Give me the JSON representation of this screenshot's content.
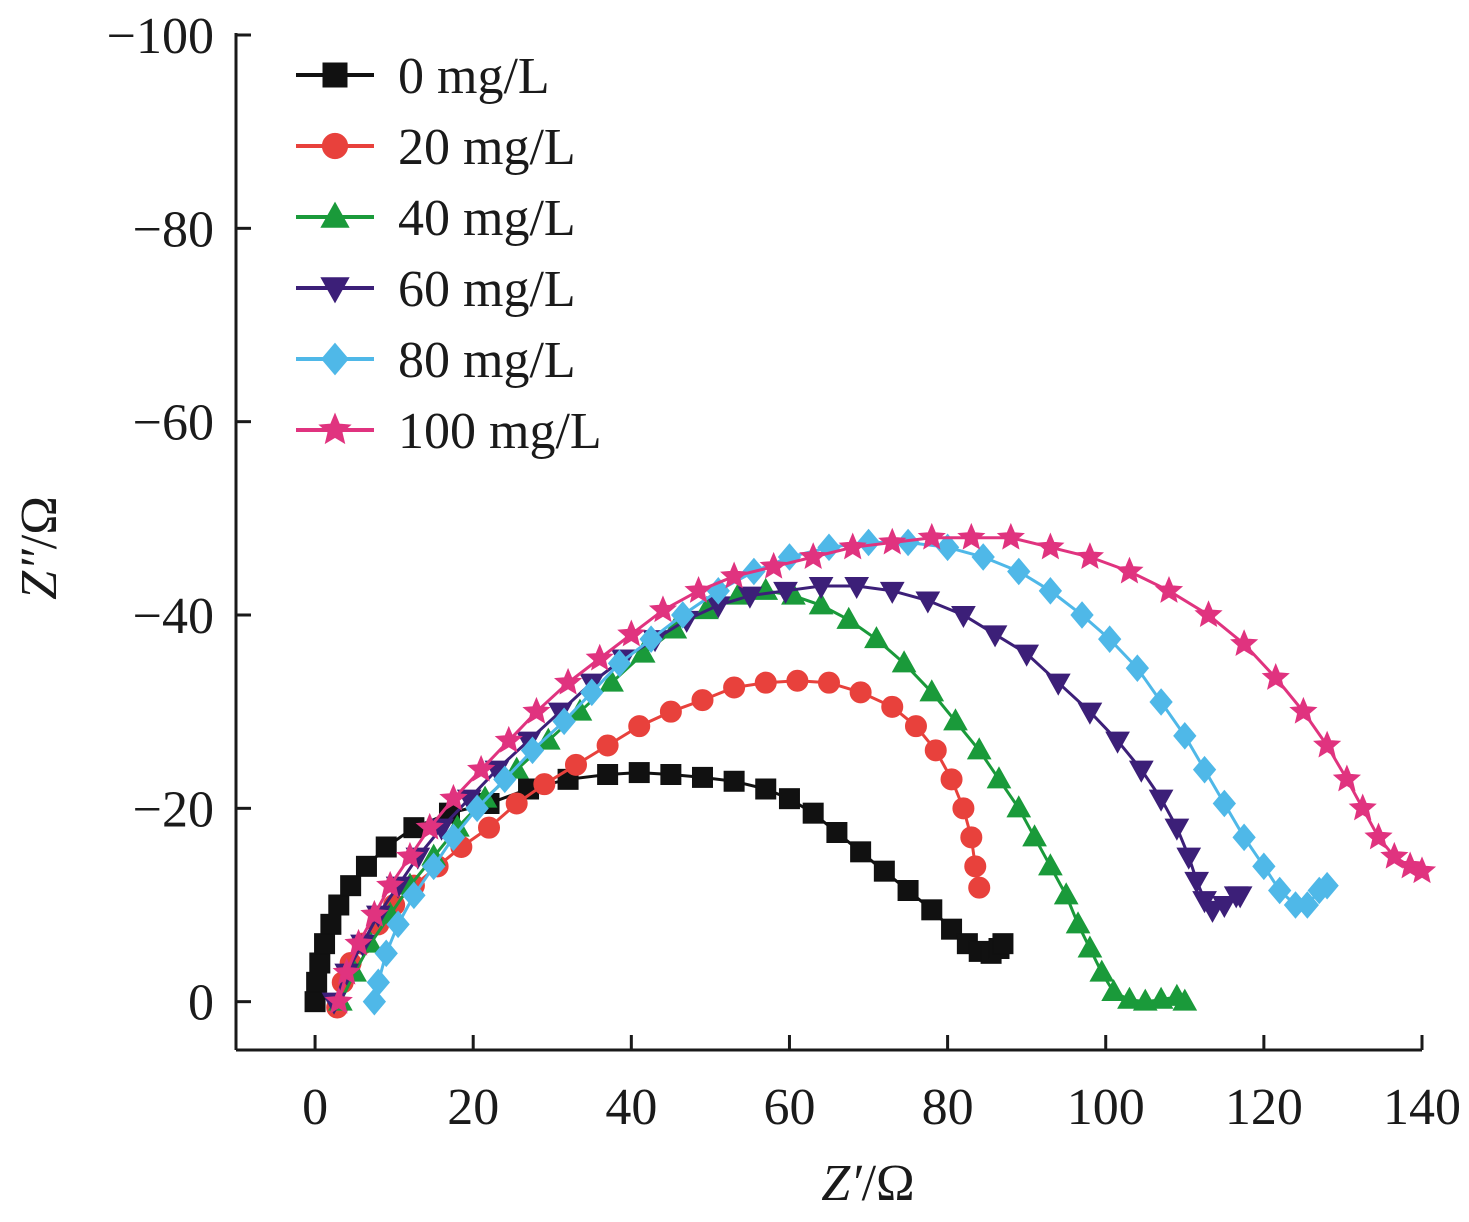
{
  "chart_data": {
    "type": "scatter",
    "title": "",
    "xlabel_main": "Z′",
    "xlabel_unit": "/Ω",
    "ylabel_main": "Z″",
    "ylabel_unit": "/Ω",
    "xlim": [
      -10,
      140
    ],
    "ylim": [
      5,
      -100
    ],
    "x_ticks": [
      0,
      20,
      40,
      60,
      80,
      100,
      120,
      140
    ],
    "x_tick_labels": [
      "0",
      "20",
      "40",
      "60",
      "80",
      "100",
      "120",
      "140"
    ],
    "y_ticks": [
      0,
      -20,
      -40,
      -60,
      -80,
      -100
    ],
    "y_tick_labels": [
      "0",
      "−20",
      "−40",
      "−60",
      "−80",
      "−100"
    ],
    "grid": false,
    "legend_position": "top-left",
    "series": [
      {
        "name": "0 mg/L",
        "color": "#111111",
        "marker": "square",
        "points": [
          [
            0,
            0
          ],
          [
            0.2,
            -2
          ],
          [
            0.6,
            -4
          ],
          [
            1.2,
            -6
          ],
          [
            2,
            -8
          ],
          [
            3,
            -10
          ],
          [
            4.5,
            -12
          ],
          [
            6.5,
            -14
          ],
          [
            9,
            -16
          ],
          [
            12.5,
            -18
          ],
          [
            17,
            -19.5
          ],
          [
            22,
            -20.5
          ],
          [
            27,
            -22
          ],
          [
            32,
            -23
          ],
          [
            37,
            -23.5
          ],
          [
            41,
            -23.7
          ],
          [
            45,
            -23.5
          ],
          [
            49,
            -23.2
          ],
          [
            53,
            -22.8
          ],
          [
            57,
            -22
          ],
          [
            60,
            -21
          ],
          [
            63,
            -19.5
          ],
          [
            66,
            -17.5
          ],
          [
            69,
            -15.5
          ],
          [
            72,
            -13.5
          ],
          [
            75,
            -11.5
          ],
          [
            78,
            -9.5
          ],
          [
            80.5,
            -7.5
          ],
          [
            82.5,
            -6
          ],
          [
            84,
            -5.2
          ],
          [
            85.5,
            -5
          ],
          [
            86.5,
            -5.5
          ],
          [
            87,
            -6
          ]
        ]
      },
      {
        "name": "20 mg/L",
        "color": "#e8413c",
        "marker": "circle",
        "points": [
          [
            2.8,
            0.6
          ],
          [
            3.5,
            -2
          ],
          [
            4.5,
            -4
          ],
          [
            6,
            -6
          ],
          [
            8,
            -8
          ],
          [
            10,
            -10
          ],
          [
            12.5,
            -12
          ],
          [
            15.5,
            -14
          ],
          [
            18.5,
            -16
          ],
          [
            22,
            -18
          ],
          [
            25.5,
            -20.5
          ],
          [
            29,
            -22.5
          ],
          [
            33,
            -24.5
          ],
          [
            37,
            -26.5
          ],
          [
            41,
            -28.5
          ],
          [
            45,
            -30
          ],
          [
            49,
            -31.2
          ],
          [
            53,
            -32.5
          ],
          [
            57,
            -33
          ],
          [
            61,
            -33.2
          ],
          [
            65,
            -33
          ],
          [
            69,
            -32
          ],
          [
            73,
            -30.5
          ],
          [
            76,
            -28.5
          ],
          [
            78.5,
            -26
          ],
          [
            80.5,
            -23
          ],
          [
            82,
            -20
          ],
          [
            83,
            -17
          ],
          [
            83.5,
            -14
          ],
          [
            84,
            -11.8
          ]
        ]
      },
      {
        "name": "40 mg/L",
        "color": "#1a9a3a",
        "marker": "triangle-up",
        "points": [
          [
            3.2,
            0
          ],
          [
            5,
            -3
          ],
          [
            7,
            -6
          ],
          [
            9.5,
            -9
          ],
          [
            12,
            -12
          ],
          [
            15,
            -15
          ],
          [
            18,
            -18
          ],
          [
            21.5,
            -21
          ],
          [
            25.5,
            -24
          ],
          [
            29.5,
            -27
          ],
          [
            33.5,
            -30
          ],
          [
            37.5,
            -33
          ],
          [
            41.5,
            -36
          ],
          [
            45.5,
            -38.5
          ],
          [
            49.5,
            -40.5
          ],
          [
            53.5,
            -42
          ],
          [
            57,
            -42.5
          ],
          [
            60.5,
            -42
          ],
          [
            64,
            -41
          ],
          [
            67.5,
            -39.5
          ],
          [
            71,
            -37.5
          ],
          [
            74.5,
            -35
          ],
          [
            78,
            -32
          ],
          [
            81,
            -29
          ],
          [
            84,
            -26
          ],
          [
            86.5,
            -23
          ],
          [
            89,
            -20
          ],
          [
            91,
            -17
          ],
          [
            93,
            -14
          ],
          [
            95,
            -11
          ],
          [
            96.5,
            -8
          ],
          [
            98,
            -5.5
          ],
          [
            99.5,
            -3
          ],
          [
            101,
            -1
          ],
          [
            103,
            -0.2
          ],
          [
            105,
            0
          ],
          [
            107,
            -0.2
          ],
          [
            109,
            -0.5
          ],
          [
            110,
            0
          ]
        ]
      },
      {
        "name": "60 mg/L",
        "color": "#3c1f78",
        "marker": "triangle-down",
        "points": [
          [
            2.4,
            0
          ],
          [
            4,
            -3
          ],
          [
            6,
            -6
          ],
          [
            8,
            -9
          ],
          [
            10.5,
            -12
          ],
          [
            13,
            -15
          ],
          [
            16,
            -18
          ],
          [
            19.5,
            -21
          ],
          [
            23,
            -24
          ],
          [
            27,
            -27
          ],
          [
            31,
            -30
          ],
          [
            35,
            -33
          ],
          [
            39,
            -35.5
          ],
          [
            43,
            -37.5
          ],
          [
            47,
            -39.5
          ],
          [
            51,
            -41
          ],
          [
            55,
            -42
          ],
          [
            59.5,
            -42.5
          ],
          [
            64,
            -43
          ],
          [
            68.5,
            -43
          ],
          [
            73,
            -42.5
          ],
          [
            77.5,
            -41.5
          ],
          [
            82,
            -40
          ],
          [
            86,
            -38
          ],
          [
            90,
            -36
          ],
          [
            94,
            -33
          ],
          [
            98,
            -30
          ],
          [
            101.5,
            -27
          ],
          [
            104.5,
            -24
          ],
          [
            107,
            -21
          ],
          [
            109,
            -18
          ],
          [
            110.5,
            -15
          ],
          [
            111.5,
            -12.5
          ],
          [
            112.5,
            -10.5
          ],
          [
            113.5,
            -9.5
          ],
          [
            115,
            -10
          ],
          [
            116.5,
            -11
          ],
          [
            117,
            -11
          ]
        ]
      },
      {
        "name": "80 mg/L",
        "color": "#4fb8e8",
        "marker": "diamond",
        "points": [
          [
            7.5,
            0
          ],
          [
            8,
            -2
          ],
          [
            9,
            -5
          ],
          [
            10.5,
            -8
          ],
          [
            12.5,
            -11
          ],
          [
            15,
            -14
          ],
          [
            17.5,
            -17
          ],
          [
            20.5,
            -20
          ],
          [
            24,
            -23
          ],
          [
            27.5,
            -26
          ],
          [
            31.5,
            -29
          ],
          [
            35,
            -32
          ],
          [
            38.5,
            -35
          ],
          [
            42.5,
            -37.5
          ],
          [
            46.5,
            -40
          ],
          [
            51,
            -42.5
          ],
          [
            55.5,
            -44.5
          ],
          [
            60,
            -46
          ],
          [
            65,
            -47
          ],
          [
            70,
            -47.5
          ],
          [
            75,
            -47.5
          ],
          [
            80,
            -47
          ],
          [
            84.5,
            -46
          ],
          [
            89,
            -44.5
          ],
          [
            93,
            -42.5
          ],
          [
            97,
            -40
          ],
          [
            100.5,
            -37.5
          ],
          [
            104,
            -34.5
          ],
          [
            107,
            -31
          ],
          [
            110,
            -27.5
          ],
          [
            112.5,
            -24
          ],
          [
            115,
            -20.5
          ],
          [
            117.5,
            -17
          ],
          [
            120,
            -14
          ],
          [
            122,
            -11.5
          ],
          [
            124,
            -10
          ],
          [
            125.5,
            -10
          ],
          [
            127,
            -11.5
          ],
          [
            128,
            -12
          ]
        ]
      },
      {
        "name": "100 mg/L",
        "color": "#e0337f",
        "marker": "star",
        "points": [
          [
            3,
            0
          ],
          [
            4,
            -3
          ],
          [
            5.5,
            -6
          ],
          [
            7.5,
            -9
          ],
          [
            9.5,
            -12
          ],
          [
            12,
            -15
          ],
          [
            14.5,
            -18
          ],
          [
            17.5,
            -21
          ],
          [
            21,
            -24
          ],
          [
            24.5,
            -27
          ],
          [
            28,
            -30
          ],
          [
            32,
            -33
          ],
          [
            36,
            -35.5
          ],
          [
            40,
            -38
          ],
          [
            44,
            -40.5
          ],
          [
            48.5,
            -42.5
          ],
          [
            53,
            -44
          ],
          [
            58,
            -45
          ],
          [
            63,
            -46
          ],
          [
            68,
            -47
          ],
          [
            73,
            -47.5
          ],
          [
            78,
            -48
          ],
          [
            83,
            -48
          ],
          [
            88,
            -48
          ],
          [
            93,
            -47
          ],
          [
            98,
            -46
          ],
          [
            103,
            -44.5
          ],
          [
            108,
            -42.5
          ],
          [
            113,
            -40
          ],
          [
            117.5,
            -37
          ],
          [
            121.5,
            -33.5
          ],
          [
            125,
            -30
          ],
          [
            128,
            -26.5
          ],
          [
            130.5,
            -23
          ],
          [
            132.5,
            -20
          ],
          [
            134.5,
            -17
          ],
          [
            136.5,
            -15
          ],
          [
            138.5,
            -14
          ],
          [
            140,
            -13.5
          ]
        ]
      }
    ]
  }
}
